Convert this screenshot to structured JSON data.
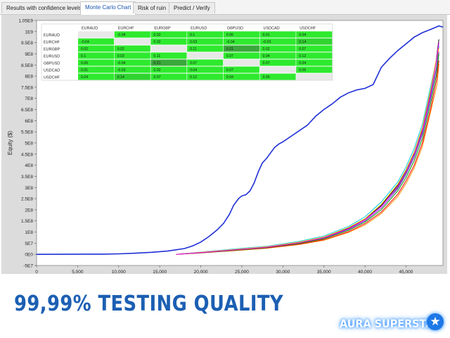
{
  "tabs": [
    {
      "label": "Results with confidence levels",
      "active": false
    },
    {
      "label": "Monte Carlo Chart",
      "active": true
    },
    {
      "label": "Risk of ruin",
      "active": false
    },
    {
      "label": "Predict / Verify",
      "active": false
    }
  ],
  "colors": {
    "main_equity_line": "#1f2fd6",
    "cell_bright": "#2eea2e",
    "cell_medium": "#2fd42f",
    "cell_dark": "#3aa83a",
    "cell_empty": "#e8e8e8",
    "headline": "#1c5fb3"
  },
  "chart_data": {
    "type": "line",
    "title": "",
    "xlabel": "",
    "ylabel": "Equity ($)",
    "xlim": [
      0,
      49500
    ],
    "ylim": [
      -50000000,
      1050000000
    ],
    "x_ticks": [
      "0",
      "5,000",
      "10,000",
      "15,000",
      "20,000",
      "25,000",
      "30,000",
      "35,000",
      "40,000",
      "45,000"
    ],
    "y_ticks": [
      "1.05E9",
      "1E9",
      "9.5E8",
      "9E8",
      "8.5E8",
      "8E8",
      "7.5E8",
      "7E8",
      "6.5E8",
      "6E8",
      "5.5E8",
      "5E8",
      "4.5E8",
      "4E8",
      "3.5E8",
      "3E8",
      "2.5E8",
      "2E8",
      "1.5E8",
      "1E8",
      "5E7",
      "0E0",
      "-5E7"
    ],
    "series": [
      {
        "color": "#1f2fd6",
        "x": [
          0,
          8000,
          10000,
          12000,
          14000,
          16000,
          18000,
          19000,
          20000,
          21000,
          22000,
          22800,
          23500,
          24000,
          24600,
          25000,
          25500,
          26000,
          26500,
          27000,
          27500,
          28000,
          28500,
          29000,
          29500,
          30000,
          31000,
          32000,
          33000,
          34000,
          35000,
          36000,
          37000,
          38000,
          39000,
          40000,
          41000,
          42000,
          43000,
          44000,
          45000,
          46000,
          47000,
          48000,
          49000,
          49500
        ],
        "y": [
          0,
          1000000,
          2000000,
          5000000,
          9000000,
          15000000,
          26000000,
          38000000,
          55000000,
          80000000,
          110000000,
          140000000,
          180000000,
          220000000,
          250000000,
          262000000,
          268000000,
          285000000,
          320000000,
          370000000,
          410000000,
          430000000,
          455000000,
          480000000,
          495000000,
          505000000,
          530000000,
          555000000,
          580000000,
          620000000,
          650000000,
          675000000,
          705000000,
          725000000,
          738000000,
          745000000,
          762000000,
          840000000,
          880000000,
          915000000,
          945000000,
          975000000,
          995000000,
          1010000000,
          1025000000,
          1020000000
        ]
      },
      {
        "color": "#ff00ff",
        "x": [
          17000,
          20000,
          24000,
          28000,
          32000,
          35000,
          38000,
          40000,
          42000,
          44000,
          45000,
          46000,
          47000,
          48000,
          48600,
          49000
        ],
        "y": [
          0,
          8000000,
          20000000,
          32000000,
          52000000,
          75000000,
          115000000,
          155000000,
          215000000,
          305000000,
          370000000,
          450000000,
          555000000,
          720000000,
          845000000,
          950000000
        ]
      },
      {
        "color": "#00a000",
        "x": [
          17000,
          20000,
          24000,
          28000,
          32000,
          35000,
          38000,
          40000,
          42000,
          44000,
          45000,
          46000,
          47000,
          48000,
          48700,
          49000
        ],
        "y": [
          0,
          7000000,
          18000000,
          30000000,
          49000000,
          70000000,
          108000000,
          145000000,
          200000000,
          285000000,
          345000000,
          420000000,
          520000000,
          680000000,
          805000000,
          900000000
        ]
      },
      {
        "color": "#ffcc00",
        "x": [
          17000,
          20000,
          24000,
          28000,
          32000,
          35000,
          38000,
          40000,
          42000,
          44000,
          45000,
          46000,
          47000,
          48000,
          48600,
          49000
        ],
        "y": [
          0,
          9000000,
          22000000,
          34000000,
          55000000,
          78000000,
          120000000,
          160000000,
          225000000,
          315000000,
          380000000,
          460000000,
          570000000,
          740000000,
          860000000,
          925000000
        ]
      },
      {
        "color": "#ff0000",
        "x": [
          17000,
          20000,
          24000,
          28000,
          32000,
          35000,
          38000,
          40000,
          42000,
          44000,
          45000,
          46000,
          47000,
          48000,
          48700,
          49000
        ],
        "y": [
          0,
          6000000,
          17000000,
          28000000,
          46000000,
          66000000,
          102000000,
          138000000,
          190000000,
          270000000,
          330000000,
          400000000,
          500000000,
          655000000,
          780000000,
          870000000
        ]
      },
      {
        "color": "#00c8ff",
        "x": [
          17000,
          20000,
          24000,
          28000,
          32000,
          35000,
          38000,
          40000,
          42000,
          44000,
          45000,
          46000,
          47000,
          48000,
          48800,
          49000
        ],
        "y": [
          0,
          10000000,
          24000000,
          36000000,
          58000000,
          82000000,
          125000000,
          168000000,
          235000000,
          325000000,
          392000000,
          475000000,
          585000000,
          755000000,
          890000000,
          940000000
        ]
      },
      {
        "color": "#8a2be2",
        "x": [
          17000,
          20000,
          24000,
          28000,
          32000,
          35000,
          38000,
          40000,
          42000,
          44000,
          45000,
          46000,
          47000,
          48000,
          48700,
          49000
        ],
        "y": [
          0,
          8000000,
          19000000,
          31000000,
          50000000,
          72000000,
          112000000,
          150000000,
          208000000,
          295000000,
          358000000,
          435000000,
          538000000,
          700000000,
          830000000,
          910000000
        ]
      },
      {
        "color": "#111111",
        "x": [
          17000,
          20000,
          24000,
          28000,
          32000,
          35000,
          38000,
          40000,
          42000,
          44000,
          45000,
          46000,
          47000,
          48000,
          48600,
          49000
        ],
        "y": [
          0,
          9000000,
          21000000,
          33000000,
          53000000,
          76000000,
          118000000,
          158000000,
          220000000,
          310000000,
          375000000,
          455000000,
          560000000,
          730000000,
          850000000,
          965000000
        ]
      },
      {
        "color": "#ff8c00",
        "x": [
          17000,
          20000,
          24000,
          28000,
          32000,
          35000,
          38000,
          40000,
          42000,
          44000,
          45000,
          46000,
          47000,
          48000,
          48800,
          49000
        ],
        "y": [
          0,
          7000000,
          16000000,
          27000000,
          44000000,
          63000000,
          98000000,
          132000000,
          183000000,
          260000000,
          318000000,
          388000000,
          485000000,
          640000000,
          765000000,
          855000000
        ]
      },
      {
        "color": "#2e8b57",
        "x": [
          17000,
          20000,
          24000,
          28000,
          32000,
          35000,
          38000,
          40000,
          42000,
          44000,
          45000,
          46000,
          47000,
          48000,
          48700,
          49000
        ],
        "y": [
          0,
          8000000,
          20000000,
          33000000,
          54000000,
          77000000,
          117000000,
          157000000,
          218000000,
          300000000,
          366000000,
          445000000,
          548000000,
          712000000,
          838000000,
          935000000
        ]
      }
    ]
  },
  "correlation_table": {
    "columns": [
      "EURAUD",
      "EURCHF",
      "EURGBP",
      "EURUSD",
      "GBPUSD",
      "USDCAD",
      "USDCHF"
    ],
    "rows": [
      {
        "label": "EURAUD",
        "cells": [
          "",
          "-0.04",
          "0.02",
          "0.1",
          "0.06",
          "0.01",
          "0.04"
        ],
        "shade": [
          "empty",
          "bright",
          "bright",
          "bright",
          "bright",
          "bright",
          "bright"
        ]
      },
      {
        "label": "EURCHF",
        "cells": [
          "-0.04",
          "",
          "0.02",
          "0.03",
          "-0.04",
          "-0.03",
          "0.14"
        ],
        "shade": [
          "bright",
          "empty",
          "bright",
          "bright",
          "bright",
          "bright",
          "medium"
        ]
      },
      {
        "label": "EURGBP",
        "cells": [
          "0.02",
          "0.02",
          "",
          "0.11",
          "0.21",
          "0.02",
          "0.07"
        ],
        "shade": [
          "bright",
          "bright",
          "empty",
          "bright",
          "dark",
          "bright",
          "bright"
        ]
      },
      {
        "label": "EURUSD",
        "cells": [
          "0.1",
          "0.03",
          "0.11",
          "",
          "0.07",
          "0.04",
          "0.12"
        ],
        "shade": [
          "bright",
          "bright",
          "bright",
          "empty",
          "bright",
          "bright",
          "bright"
        ]
      },
      {
        "label": "GBPUSD",
        "cells": [
          "0.06",
          "-0.04",
          "0.21",
          "0.07",
          "",
          "0.07",
          "0.04"
        ],
        "shade": [
          "bright",
          "bright",
          "dark",
          "bright",
          "empty",
          "bright",
          "bright"
        ]
      },
      {
        "label": "USDCAD",
        "cells": [
          "0.01",
          "-0.03",
          "0.02",
          "0.04",
          "0.07",
          "",
          "0.05"
        ],
        "shade": [
          "bright",
          "bright",
          "bright",
          "bright",
          "bright",
          "empty",
          "bright"
        ]
      },
      {
        "label": "USDCHF",
        "cells": [
          "0.04",
          "0.14",
          "0.07",
          "0.12",
          "0.04",
          "0.05",
          ""
        ],
        "shade": [
          "bright",
          "medium",
          "bright",
          "bright",
          "bright",
          "bright",
          "empty"
        ]
      }
    ]
  },
  "footer": {
    "headline": "99,99% TESTING QUALITY",
    "brand": "AURA SUPERSTAR",
    "brand_icon": "star-icon"
  }
}
